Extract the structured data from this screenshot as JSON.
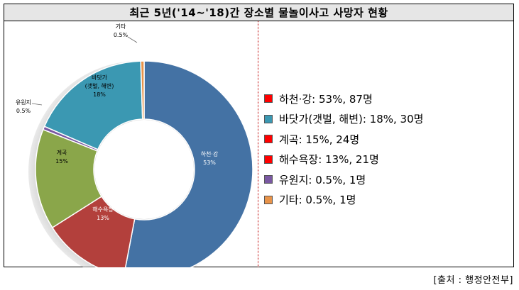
{
  "title": "최근 5년('14~'18)간 장소별 물놀이사고 사망자 현황",
  "source": "[출처 : 행정안전부]",
  "colors": {
    "river": "#4472a4",
    "sea": "#3b98b2",
    "valley": "#8aa64a",
    "beach": "#b3403c",
    "park": "#7a58a2",
    "other": "#e8934a",
    "legend_red": "#ff0000"
  },
  "chart_data": {
    "type": "pie",
    "donut": true,
    "slices": [
      {
        "key": "river",
        "label": "하천·강",
        "label_lines": [
          "하천·강"
        ],
        "pct_text": "53%",
        "value": 53,
        "color": "#4472a4",
        "text_color": "#ffffff"
      },
      {
        "key": "beach",
        "label": "해수욕장",
        "label_lines": [
          "해수욕장"
        ],
        "pct_text": "13%",
        "value": 13,
        "color": "#b3403c",
        "text_color": "#ffffff"
      },
      {
        "key": "valley",
        "label": "계곡",
        "label_lines": [
          "계곡"
        ],
        "pct_text": "15%",
        "value": 15,
        "color": "#8aa64a",
        "text_color": "#000000"
      },
      {
        "key": "park",
        "label": "유원지",
        "label_lines": [
          "유원지"
        ],
        "pct_text": "0.5%",
        "value": 0.5,
        "color": "#7a58a2",
        "text_color": "#000000"
      },
      {
        "key": "sea",
        "label": "바닷가(갯벌, 해변)",
        "label_lines": [
          "바닷가",
          "(갯벌, 해변)"
        ],
        "pct_text": "18%",
        "value": 18,
        "color": "#3b98b2",
        "text_color": "#000000"
      },
      {
        "key": "other",
        "label": "기타",
        "label_lines": [
          "기타"
        ],
        "pct_text": "0.5%",
        "value": 0.5,
        "color": "#e8934a",
        "text_color": "#000000"
      }
    ],
    "legend": [
      {
        "text": "하천·강: 53%, 87명",
        "swatch": "#ff0000"
      },
      {
        "text": "바닷가(갯벌, 해변): 18%, 30명",
        "swatch": "#3b98b2"
      },
      {
        "text": "계곡: 15%, 24명",
        "swatch": "#ff0000"
      },
      {
        "text": "해수욕장: 13%, 21명",
        "swatch": "#ff0000"
      },
      {
        "text": "유원지: 0.5%, 1명",
        "swatch": "#7a58a2"
      },
      {
        "text": "기타: 0.5%, 1명",
        "swatch": "#e8934a"
      }
    ]
  }
}
